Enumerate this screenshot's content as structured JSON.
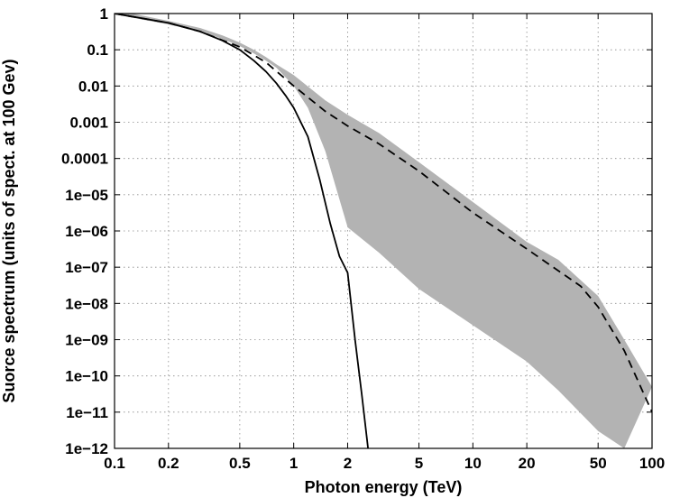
{
  "chart_data": {
    "type": "line",
    "title": "",
    "xlabel": "Photon energy (TeV)",
    "ylabel": "Suorce spectrum (units of spect. at 100 Gev)",
    "x_scale": "log",
    "y_scale": "log",
    "xlim": [
      0.1,
      100
    ],
    "ylim": [
      1e-12,
      1
    ],
    "grid": true,
    "legend": "none",
    "x_ticks": [
      {
        "value": 0.1,
        "label": "0.1"
      },
      {
        "value": 0.2,
        "label": "0.2"
      },
      {
        "value": 0.5,
        "label": "0.5"
      },
      {
        "value": 1,
        "label": "1"
      },
      {
        "value": 2,
        "label": "2"
      },
      {
        "value": 5,
        "label": "5"
      },
      {
        "value": 10,
        "label": "10"
      },
      {
        "value": 20,
        "label": "20"
      },
      {
        "value": 50,
        "label": "50"
      },
      {
        "value": 100,
        "label": "100"
      }
    ],
    "y_ticks": [
      {
        "value": 1,
        "label": "1"
      },
      {
        "value": 0.1,
        "label": "0.1"
      },
      {
        "value": 0.01,
        "label": "0.01"
      },
      {
        "value": 0.001,
        "label": "0.001"
      },
      {
        "value": 0.0001,
        "label": "0.0001"
      },
      {
        "value": 1e-05,
        "label": "1e−05"
      },
      {
        "value": 1e-06,
        "label": "1e−06"
      },
      {
        "value": 1e-07,
        "label": "1e−07"
      },
      {
        "value": 1e-08,
        "label": "1e−08"
      },
      {
        "value": 1e-09,
        "label": "1e−09"
      },
      {
        "value": 1e-10,
        "label": "1e−10"
      },
      {
        "value": 1e-11,
        "label": "1e−11"
      },
      {
        "value": 1e-12,
        "label": "1e−12"
      }
    ],
    "band": {
      "color": "#b3b3b3",
      "upper": [
        {
          "x": 0.1,
          "y": 1.25
        },
        {
          "x": 0.2,
          "y": 0.63
        },
        {
          "x": 0.3,
          "y": 0.4
        },
        {
          "x": 0.4,
          "y": 0.25
        },
        {
          "x": 0.5,
          "y": 0.158
        },
        {
          "x": 0.6,
          "y": 0.1
        },
        {
          "x": 0.7,
          "y": 0.063
        },
        {
          "x": 0.8,
          "y": 0.04
        },
        {
          "x": 1,
          "y": 0.02
        },
        {
          "x": 1.5,
          "y": 0.004
        },
        {
          "x": 2,
          "y": 0.0016
        },
        {
          "x": 3,
          "y": 0.0005
        },
        {
          "x": 5,
          "y": 7.9e-05
        },
        {
          "x": 10,
          "y": 6.3e-06
        },
        {
          "x": 20,
          "y": 5e-07
        },
        {
          "x": 30,
          "y": 1.6e-07
        },
        {
          "x": 50,
          "y": 1.6e-08
        },
        {
          "x": 70,
          "y": 1e-09
        },
        {
          "x": 100,
          "y": 5e-11
        }
      ],
      "lower": [
        {
          "x": 0.1,
          "y": 0.95
        },
        {
          "x": 0.2,
          "y": 0.5
        },
        {
          "x": 0.3,
          "y": 0.32
        },
        {
          "x": 0.4,
          "y": 0.2
        },
        {
          "x": 0.5,
          "y": 0.126
        },
        {
          "x": 0.6,
          "y": 0.079
        },
        {
          "x": 0.7,
          "y": 0.05
        },
        {
          "x": 0.8,
          "y": 0.032
        },
        {
          "x": 1,
          "y": 0.01
        },
        {
          "x": 1.2,
          "y": 0.0025
        },
        {
          "x": 1.5,
          "y": 0.00016
        },
        {
          "x": 2,
          "y": 1.26e-06
        },
        {
          "x": 3,
          "y": 2.5e-07
        },
        {
          "x": 5,
          "y": 2.5e-08
        },
        {
          "x": 10,
          "y": 2.5e-09
        },
        {
          "x": 20,
          "y": 2.5e-10
        },
        {
          "x": 30,
          "y": 4e-11
        },
        {
          "x": 50,
          "y": 3e-12
        },
        {
          "x": 70,
          "y": 1e-12
        }
      ]
    },
    "series": [
      {
        "style": "solid",
        "color": "#000000",
        "points": [
          {
            "x": 0.1,
            "y": 1
          },
          {
            "x": 0.2,
            "y": 0.55
          },
          {
            "x": 0.3,
            "y": 0.32
          },
          {
            "x": 0.4,
            "y": 0.18
          },
          {
            "x": 0.5,
            "y": 0.1
          },
          {
            "x": 0.6,
            "y": 0.05
          },
          {
            "x": 0.7,
            "y": 0.025
          },
          {
            "x": 0.8,
            "y": 0.012
          },
          {
            "x": 0.9,
            "y": 0.0055
          },
          {
            "x": 1,
            "y": 0.0025
          },
          {
            "x": 1.2,
            "y": 0.0004
          },
          {
            "x": 1.4,
            "y": 2.5e-05
          },
          {
            "x": 1.6,
            "y": 1.6e-06
          },
          {
            "x": 1.8,
            "y": 2e-07
          },
          {
            "x": 2,
            "y": 7e-08
          },
          {
            "x": 2.2,
            "y": 1e-09
          },
          {
            "x": 2.4,
            "y": 3e-11
          },
          {
            "x": 2.6,
            "y": 1e-12
          }
        ]
      },
      {
        "style": "dashed",
        "color": "#000000",
        "points": [
          {
            "x": 0.1,
            "y": 1
          },
          {
            "x": 0.2,
            "y": 0.55
          },
          {
            "x": 0.3,
            "y": 0.32
          },
          {
            "x": 0.5,
            "y": 0.12
          },
          {
            "x": 0.7,
            "y": 0.045
          },
          {
            "x": 1,
            "y": 0.01
          },
          {
            "x": 1.5,
            "y": 0.002
          },
          {
            "x": 2,
            "y": 0.00079
          },
          {
            "x": 3,
            "y": 0.000251
          },
          {
            "x": 5,
            "y": 4.5e-05
          },
          {
            "x": 10,
            "y": 3.2e-06
          },
          {
            "x": 20,
            "y": 3.2e-07
          },
          {
            "x": 30,
            "y": 8e-08
          },
          {
            "x": 40,
            "y": 3e-08
          },
          {
            "x": 50,
            "y": 8e-09
          },
          {
            "x": 70,
            "y": 5e-10
          },
          {
            "x": 100,
            "y": 1e-11
          }
        ]
      }
    ]
  }
}
